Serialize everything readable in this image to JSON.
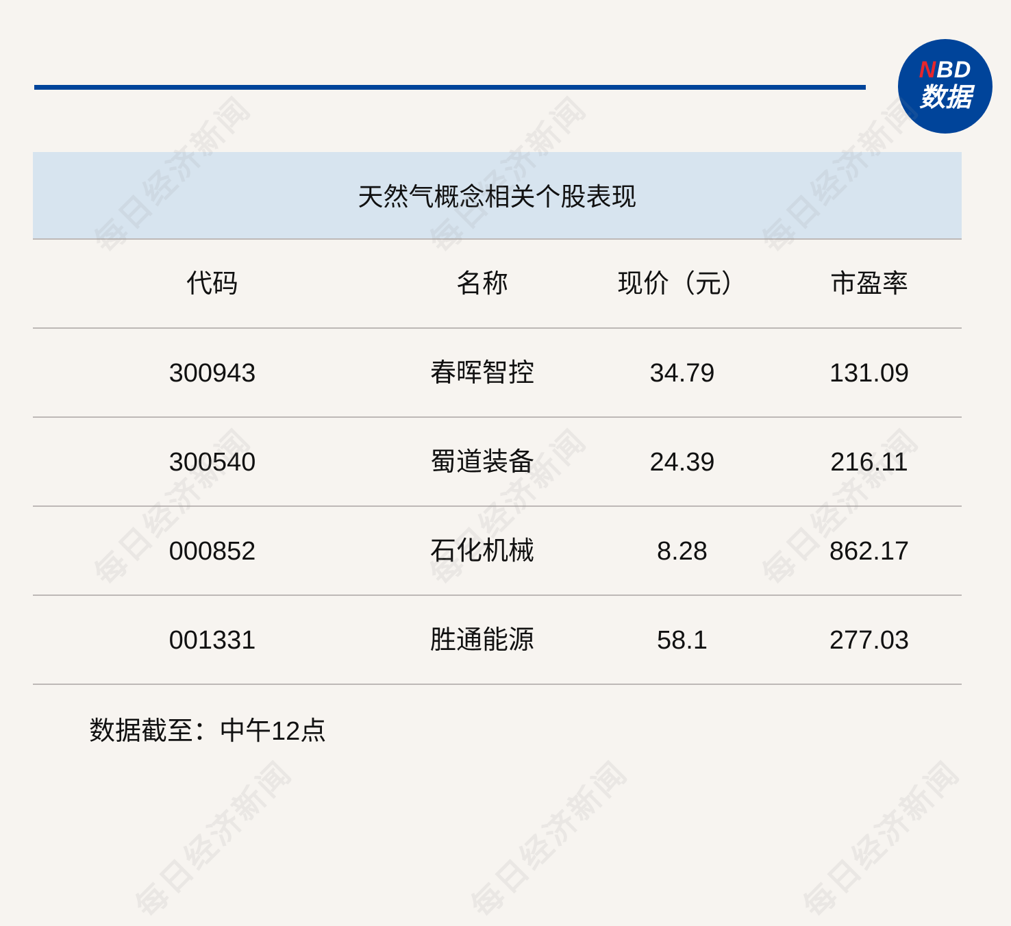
{
  "logo": {
    "text_line1": "NBD",
    "text_line2": "数据",
    "accent": "#e8262c",
    "brand": "#00449a"
  },
  "watermark": "每日经济新闻",
  "table": {
    "title": "天然气概念相关个股表现",
    "headers": [
      "代码",
      "名称",
      "现价（元）",
      "市盈率"
    ],
    "rows": [
      [
        "300943",
        "春晖智控",
        "34.79",
        "131.09"
      ],
      [
        "300540",
        "蜀道装备",
        "24.39",
        "216.11"
      ],
      [
        "000852",
        "石化机械",
        "8.28",
        "862.17"
      ],
      [
        "001331",
        "胜通能源",
        "58.1",
        "277.03"
      ]
    ]
  },
  "footer": "数据截至：中午12点"
}
